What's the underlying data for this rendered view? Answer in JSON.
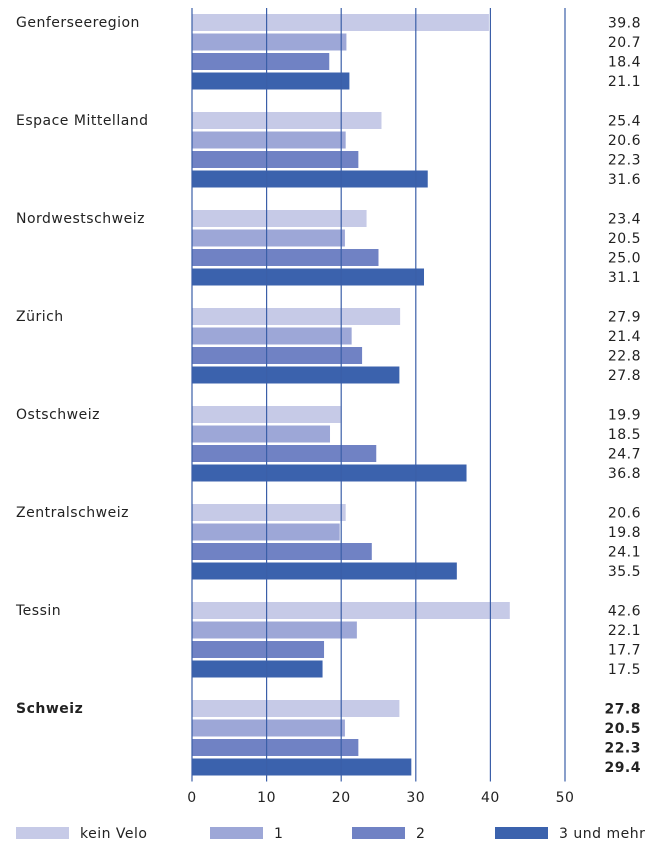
{
  "chart_data": {
    "type": "barh",
    "categories": [
      "Genferseeregion",
      "Espace Mittelland",
      "Nordwestschweiz",
      "Zürich",
      "Ostschweiz",
      "Zentralschweiz",
      "Tessin",
      "Schweiz"
    ],
    "series": [
      {
        "name": "kein Velo",
        "color": "#c6cae7",
        "values": [
          39.8,
          25.4,
          23.4,
          27.9,
          19.9,
          20.6,
          42.6,
          27.8
        ],
        "value_labels": [
          "39.8",
          "25.4",
          "23.4",
          "27.9",
          "19.9",
          "20.6",
          "42.6",
          "27.8"
        ]
      },
      {
        "name": "1",
        "color": "#9da7d7",
        "values": [
          20.7,
          20.6,
          20.5,
          21.4,
          18.5,
          19.8,
          22.1,
          20.5
        ],
        "value_labels": [
          "20.7",
          "20.6",
          "20.5",
          "21.4",
          "18.5",
          "19.8",
          "22.1",
          "20.5"
        ]
      },
      {
        "name": "2",
        "color": "#7082c4",
        "values": [
          18.4,
          22.3,
          25.0,
          22.8,
          24.7,
          24.1,
          17.7,
          22.3
        ],
        "value_labels": [
          "18.4",
          "22.3",
          "25.0",
          "22.8",
          "24.7",
          "24.1",
          "17.7",
          "22.3"
        ]
      },
      {
        "name": "3 und mehr",
        "color": "#3b62ad",
        "values": [
          21.1,
          31.6,
          31.1,
          27.8,
          36.8,
          35.5,
          17.5,
          29.4
        ],
        "value_labels": [
          "21.1",
          "31.6",
          "31.1",
          "27.8",
          "36.8",
          "35.5",
          "17.5",
          "29.4"
        ]
      }
    ],
    "xlim": [
      0,
      50
    ],
    "xticks": [
      0,
      10,
      20,
      30,
      40,
      50
    ],
    "grid": true,
    "legend": "bottom"
  }
}
